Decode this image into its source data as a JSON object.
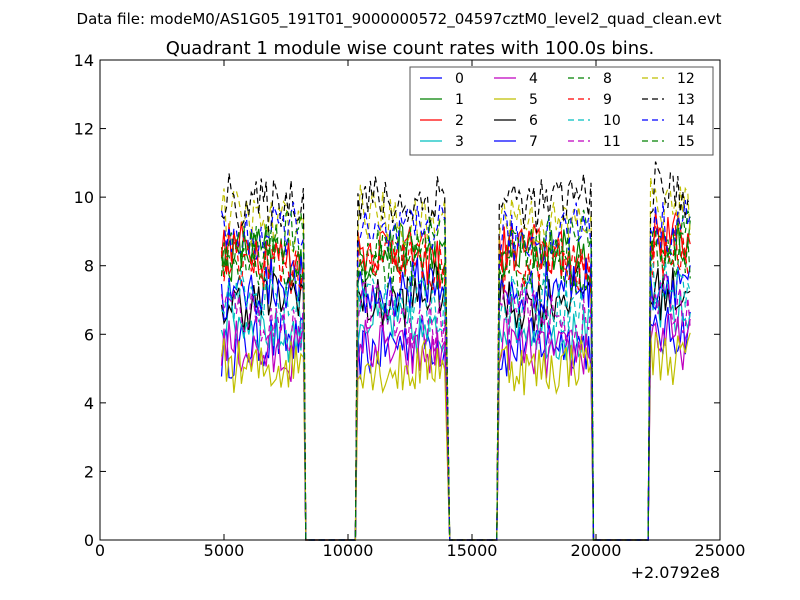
{
  "header": {
    "datafile": "Data file: modeM0/AS1G05_191T01_9000000572_04597cztM0_level2_quad_clean.evt"
  },
  "chart_data": {
    "type": "line",
    "title": "Quadrant 1 module wise count rates with 100.0s bins.",
    "xlabel": "",
    "ylabel": "",
    "x_offset_text": "+2.0792e8",
    "xlim": [
      0,
      25000
    ],
    "ylim": [
      0,
      14
    ],
    "x_ticks": [
      0,
      5000,
      10000,
      15000,
      20000,
      25000
    ],
    "x_tick_labels": [
      "0",
      "5000",
      "10000",
      "15000",
      "20000",
      "25000"
    ],
    "y_ticks": [
      0,
      2,
      4,
      6,
      8,
      10,
      12,
      14
    ],
    "y_tick_labels": [
      "0",
      "2",
      "4",
      "6",
      "8",
      "10",
      "12",
      "14"
    ],
    "grid": false,
    "legend_position": "top-right",
    "legend_columns": 4,
    "bin_width": 100,
    "segments": [
      {
        "start": 4900,
        "end": 8200,
        "drop_end": 8300
      },
      {
        "start": 10400,
        "end": 13900,
        "drop_end": 14100
      },
      {
        "start": 16100,
        "end": 19800,
        "drop_end": 19900
      },
      {
        "start": 22200,
        "end": 23800,
        "drop_end": 23800
      }
    ],
    "series": [
      {
        "name": "0",
        "color": "#0000ff",
        "dash": "solid",
        "mean": 5.6
      },
      {
        "name": "1",
        "color": "#008000",
        "dash": "solid",
        "mean": 8.2
      },
      {
        "name": "2",
        "color": "#ff0000",
        "dash": "solid",
        "mean": 8.3
      },
      {
        "name": "3",
        "color": "#00bfbf",
        "dash": "solid",
        "mean": 6.2
      },
      {
        "name": "4",
        "color": "#bf00bf",
        "dash": "solid",
        "mean": 5.6
      },
      {
        "name": "5",
        "color": "#bfbf00",
        "dash": "solid",
        "mean": 5.2
      },
      {
        "name": "6",
        "color": "#000000",
        "dash": "solid",
        "mean": 7.1
      },
      {
        "name": "7",
        "color": "#0000ff",
        "dash": "solid",
        "mean": 7.3
      },
      {
        "name": "8",
        "color": "#008000",
        "dash": "dashed",
        "mean": 7.8
      },
      {
        "name": "9",
        "color": "#ff0000",
        "dash": "dashed",
        "mean": 7.9
      },
      {
        "name": "10",
        "color": "#00bfbf",
        "dash": "dashed",
        "mean": 6.9
      },
      {
        "name": "11",
        "color": "#bf00bf",
        "dash": "dashed",
        "mean": 6.5
      },
      {
        "name": "12",
        "color": "#bfbf00",
        "dash": "dashed",
        "mean": 9.4
      },
      {
        "name": "13",
        "color": "#000000",
        "dash": "dashed",
        "mean": 10.0
      },
      {
        "name": "14",
        "color": "#0000ff",
        "dash": "dashed",
        "mean": 9.0
      },
      {
        "name": "15",
        "color": "#008000",
        "dash": "dashed",
        "mean": 8.6
      }
    ]
  }
}
